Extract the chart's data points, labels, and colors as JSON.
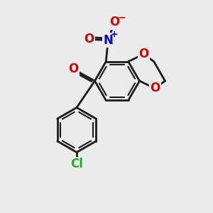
{
  "bg_color": "#ebebeb",
  "bond_color": "#1a1a1a",
  "bond_width": 2.0,
  "O_color": "#cc0000",
  "N_color": "#0000cc",
  "Cl_color": "#22aa22",
  "font_size_atom": 12,
  "fig_size": [
    3.0,
    3.0
  ],
  "dpi": 100,
  "xlim": [
    0,
    10
  ],
  "ylim": [
    0,
    10
  ]
}
